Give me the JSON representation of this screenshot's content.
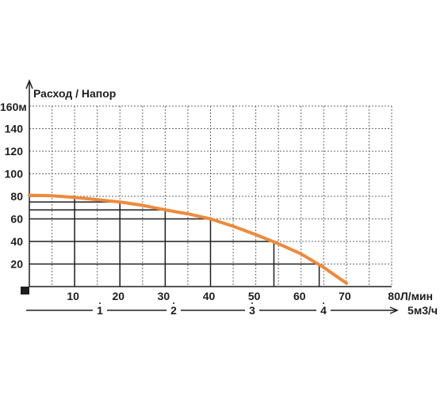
{
  "chart_data": {
    "type": "line",
    "title": "Расход / Напор",
    "y_axis": {
      "unit_label": "160м",
      "range": [
        0,
        160
      ],
      "ticks": [
        {
          "value": 20,
          "label": "20"
        },
        {
          "value": 40,
          "label": "40"
        },
        {
          "value": 60,
          "label": "60"
        },
        {
          "value": 80,
          "label": "80"
        },
        {
          "value": 100,
          "label": "100"
        },
        {
          "value": 120,
          "label": "120"
        },
        {
          "value": 140,
          "label": "140"
        }
      ]
    },
    "x_axis": {
      "unit_label": "80Л/мин",
      "range": [
        0,
        80
      ],
      "ticks": [
        {
          "value": 10,
          "label": "10"
        },
        {
          "value": 20,
          "label": "20"
        },
        {
          "value": 30,
          "label": "30"
        },
        {
          "value": 40,
          "label": "40"
        },
        {
          "value": 50,
          "label": "50"
        },
        {
          "value": 60,
          "label": "60"
        },
        {
          "value": 70,
          "label": "70"
        }
      ]
    },
    "x2_axis": {
      "unit_label": "5м3/ч",
      "ticks": [
        {
          "value": 1,
          "label": "1"
        },
        {
          "value": 2,
          "label": "2"
        },
        {
          "value": 3,
          "label": "3"
        },
        {
          "value": 4,
          "label": "4"
        }
      ]
    },
    "grid": true,
    "highlight_points": [
      {
        "x": 10,
        "y": 80
      },
      {
        "x": 20,
        "y": 75
      },
      {
        "x": 30,
        "y": 68
      },
      {
        "x": 40,
        "y": 60
      },
      {
        "x": 54,
        "y": 40
      },
      {
        "x": 64,
        "y": 20
      }
    ],
    "series": [
      {
        "color": "#ee8a3c",
        "x": [
          0,
          5,
          10,
          15,
          20,
          25,
          30,
          35,
          40,
          45,
          50,
          55,
          60,
          65,
          70
        ],
        "y": [
          81,
          80.5,
          79,
          77,
          75,
          72,
          68,
          64.5,
          60,
          53.5,
          46,
          38,
          29,
          17,
          3
        ]
      }
    ]
  }
}
